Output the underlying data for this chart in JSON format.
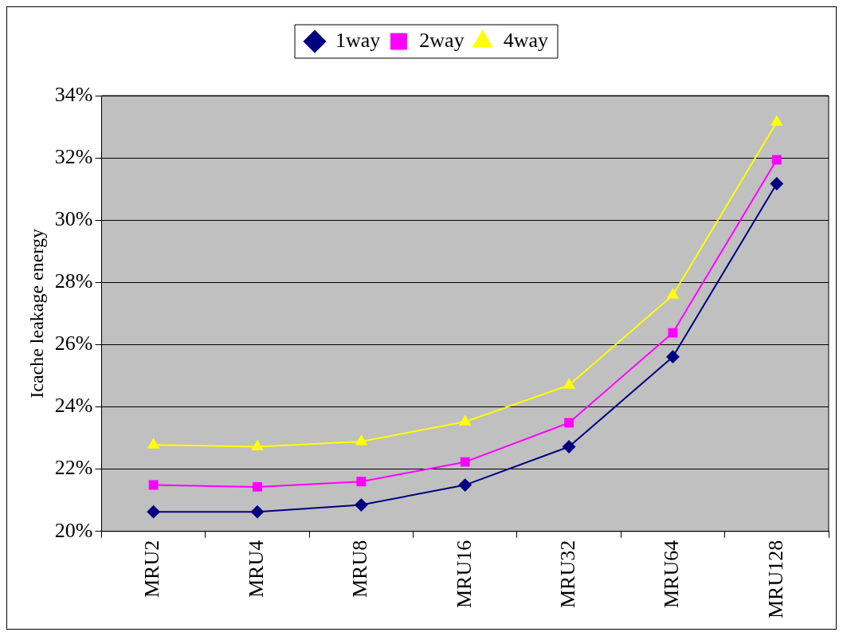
{
  "chart_data": {
    "type": "line",
    "ylabel": "Icache leakage energy",
    "categories": [
      "MRU2",
      "MRU4",
      "MRU8",
      "MRU16",
      "MRU32",
      "MRU64",
      "MRU128"
    ],
    "series": [
      {
        "name": "1way",
        "color": "#000080",
        "marker": "diamond",
        "values": [
          20.63,
          20.63,
          20.85,
          21.49,
          22.72,
          25.61,
          31.17
        ]
      },
      {
        "name": "2way",
        "color": "#ff00ff",
        "marker": "square",
        "values": [
          21.49,
          21.43,
          21.6,
          22.23,
          23.49,
          26.38,
          31.94
        ]
      },
      {
        "name": "4way",
        "color": "#ffff00",
        "marker": "triangle",
        "values": [
          22.78,
          22.72,
          22.89,
          23.52,
          24.7,
          27.59,
          33.15
        ]
      }
    ],
    "ylim": [
      20,
      34
    ],
    "yticks": [
      {
        "value": 20,
        "label": "20%"
      },
      {
        "value": 22,
        "label": "22%"
      },
      {
        "value": 24,
        "label": "24%"
      },
      {
        "value": 26,
        "label": "26%"
      },
      {
        "value": 28,
        "label": "28%"
      },
      {
        "value": 30,
        "label": "30%"
      },
      {
        "value": 32,
        "label": "32%"
      },
      {
        "value": 34,
        "label": "34%"
      }
    ],
    "grid": "y",
    "legend": "top",
    "line_style": "solid"
  }
}
